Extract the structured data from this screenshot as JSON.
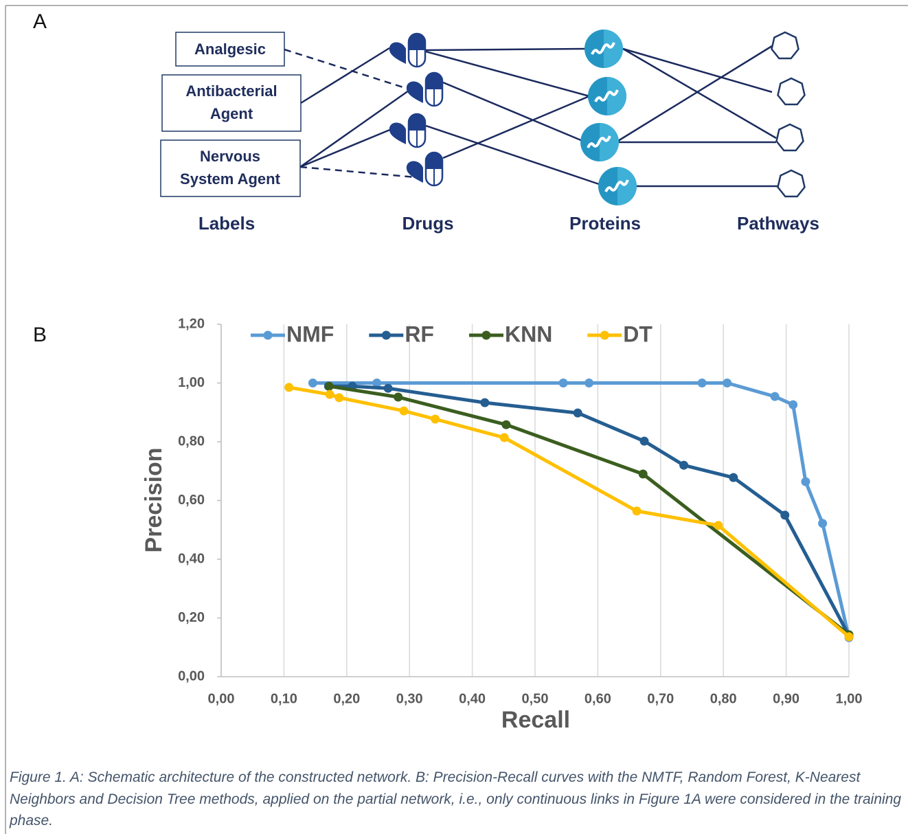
{
  "panel_a": {
    "letter": "A",
    "labels": [
      [
        "Analgesic"
      ],
      [
        "Antibacterial",
        "Agent"
      ],
      [
        "Nervous",
        "System Agent"
      ]
    ],
    "column_headers": [
      "Labels",
      "Drugs",
      "Proteins",
      "Pathways"
    ]
  },
  "panel_b": {
    "letter": "B"
  },
  "chart_data": {
    "type": "line",
    "xlabel": "Recall",
    "ylabel": "Precision",
    "xlim": [
      0,
      1
    ],
    "ylim": [
      0,
      1.2
    ],
    "xticks": [
      {
        "value": 0,
        "label": "0,00"
      },
      {
        "value": 0.1,
        "label": "0,10"
      },
      {
        "value": 0.2,
        "label": "0,20"
      },
      {
        "value": 0.3,
        "label": "0,30"
      },
      {
        "value": 0.4,
        "label": "0,40"
      },
      {
        "value": 0.5,
        "label": "0,50"
      },
      {
        "value": 0.6,
        "label": "0,60"
      },
      {
        "value": 0.7,
        "label": "0,70"
      },
      {
        "value": 0.8,
        "label": "0,80"
      },
      {
        "value": 0.9,
        "label": "0,90"
      },
      {
        "value": 1,
        "label": "1,00"
      }
    ],
    "yticks": [
      {
        "value": 0,
        "label": "0,00"
      },
      {
        "value": 0.2,
        "label": "0,20"
      },
      {
        "value": 0.4,
        "label": "0,40"
      },
      {
        "value": 0.6,
        "label": "0,60"
      },
      {
        "value": 0.8,
        "label": "0,80"
      },
      {
        "value": 1,
        "label": "1,00"
      },
      {
        "value": 1.2,
        "label": "1,20"
      }
    ],
    "grid": "x",
    "legend": "top",
    "series": [
      {
        "name": "NMF",
        "color": "#5b9bd5",
        "x": [
          0.146,
          0.248,
          0.545,
          0.586,
          0.766,
          0.806,
          0.882,
          0.911,
          0.931,
          0.958,
          1.0
        ],
        "values": [
          1.0,
          1.0,
          1.0,
          1.0,
          1.0,
          1.0,
          0.954,
          0.926,
          0.664,
          0.522,
          0.133
        ]
      },
      {
        "name": "RF",
        "color": "#255e91",
        "x": [
          0.171,
          0.209,
          0.266,
          0.42,
          0.568,
          0.674,
          0.737,
          0.816,
          0.898,
          1.0
        ],
        "values": [
          0.989,
          0.989,
          0.982,
          0.933,
          0.898,
          0.802,
          0.72,
          0.678,
          0.55,
          0.14
        ]
      },
      {
        "name": "KNN",
        "color": "#3b5e1f",
        "x": [
          0.172,
          0.282,
          0.454,
          0.672,
          1.0
        ],
        "values": [
          0.989,
          0.952,
          0.858,
          0.69,
          0.143
        ]
      },
      {
        "name": "DT",
        "color": "#ffc000",
        "x": [
          0.108,
          0.173,
          0.188,
          0.291,
          0.341,
          0.451,
          0.662,
          0.792,
          1.0
        ],
        "values": [
          0.985,
          0.961,
          0.95,
          0.905,
          0.877,
          0.814,
          0.564,
          0.515,
          0.136
        ]
      }
    ]
  },
  "caption": "Figure 1. A: Schematic architecture of the constructed network. B: Precision-Recall curves with the NMTF, Random Forest, K-Nearest Neighbors and Decision Tree methods, applied on the partial network, i.e., only continuous links in Figure 1A were considered in the training phase."
}
